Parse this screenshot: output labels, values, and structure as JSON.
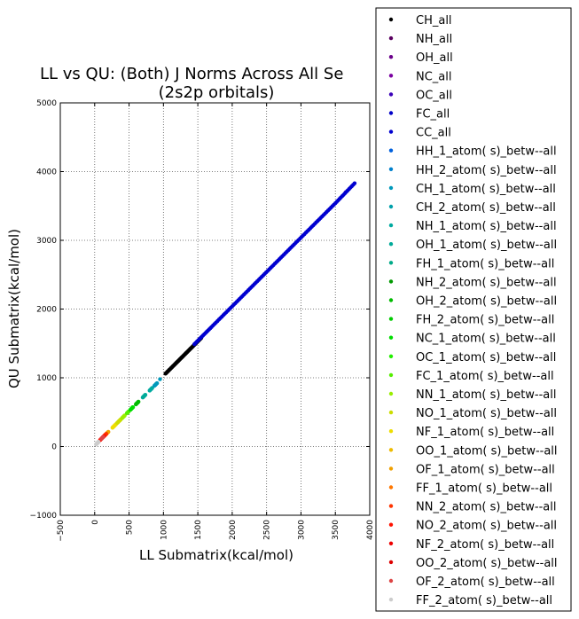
{
  "chart_data": {
    "type": "scatter",
    "title": "LL vs QU: (Both) J Norms Across All Se",
    "subtitle": "(2s2p orbitals)",
    "xlabel": "LL Submatrix(kcal/mol)",
    "ylabel": "QU Submatrix(kcal/mol)",
    "xlim": [
      -500,
      4000
    ],
    "ylim": [
      -1000,
      5000
    ],
    "xticks": [
      -500,
      0,
      500,
      1000,
      1500,
      2000,
      2500,
      3000,
      3500,
      4000
    ],
    "yticks": [
      -1000,
      0,
      1000,
      2000,
      3000,
      4000,
      5000
    ],
    "xtick_labels": [
      "−500",
      "0",
      "500",
      "1000",
      "1500",
      "2000",
      "2500",
      "3000",
      "3500",
      "4000"
    ],
    "ytick_labels": [
      "−1000",
      "0",
      "1000",
      "2000",
      "3000",
      "4000",
      "5000"
    ],
    "grid": true,
    "legend_position": "right, outside plot area",
    "series": [
      {
        "name": "CH_all",
        "color": "#000000",
        "x": [
          1030,
          1150,
          1250,
          1350,
          1450,
          1550
        ],
        "y": [
          1060,
          1180,
          1280,
          1380,
          1480,
          1580
        ]
      },
      {
        "name": "NH_all",
        "color": "#5a0060",
        "x": [],
        "y": []
      },
      {
        "name": "OH_all",
        "color": "#6a008a",
        "x": [],
        "y": []
      },
      {
        "name": "NC_all",
        "color": "#7a00a0",
        "x": [
          3650
        ],
        "y": [
          3700
        ]
      },
      {
        "name": "OC_all",
        "color": "#3a00b8",
        "x": [],
        "y": []
      },
      {
        "name": "FC_all",
        "color": "#0000c8",
        "x": [],
        "y": []
      },
      {
        "name": "CC_all",
        "color": "#0000d0",
        "x": [
          1450,
          1700,
          2000,
          2300,
          2600,
          2900,
          3200,
          3500,
          3780
        ],
        "y": [
          1490,
          1740,
          2040,
          2340,
          2640,
          2940,
          3240,
          3540,
          3830
        ]
      },
      {
        "name": "HH_1_atom( s)_betw--all",
        "color": "#0060dd",
        "x": [],
        "y": []
      },
      {
        "name": "HH_2_atom( s)_betw--all",
        "color": "#0080cc",
        "x": [],
        "y": []
      },
      {
        "name": "CH_1_atom( s)_betw--all",
        "color": "#0099bb",
        "x": [
          950
        ],
        "y": [
          980
        ]
      },
      {
        "name": "CH_2_atom( s)_betw--all",
        "color": "#00a0aa",
        "x": [],
        "y": []
      },
      {
        "name": "NH_1_atom( s)_betw--all",
        "color": "#00aaa0",
        "x": [],
        "y": []
      },
      {
        "name": "OH_1_atom( s)_betw--all",
        "color": "#00aa99",
        "x": [],
        "y": []
      },
      {
        "name": "FH_1_atom( s)_betw--all",
        "color": "#00aa88",
        "x": [],
        "y": []
      },
      {
        "name": "NH_2_atom( s)_betw--all",
        "color": "#009900",
        "x": [],
        "y": []
      },
      {
        "name": "OH_2_atom( s)_betw--all",
        "color": "#00bb00",
        "x": [],
        "y": []
      },
      {
        "name": "FH_2_atom( s)_betw--all",
        "color": "#00cc00",
        "x": [],
        "y": []
      },
      {
        "name": "NC_1_atom( s)_betw--all",
        "color": "#00dd00",
        "x": [],
        "y": []
      },
      {
        "name": "OC_1_atom( s)_betw--all",
        "color": "#22ee00",
        "x": [
          550
        ],
        "y": [
          570
        ]
      },
      {
        "name": "FC_1_atom( s)_betw--all",
        "color": "#55ee00",
        "x": [],
        "y": []
      },
      {
        "name": "NN_1_atom( s)_betw--all",
        "color": "#99ee00",
        "x": [],
        "y": []
      },
      {
        "name": "NO_1_atom( s)_betw--all",
        "color": "#ccdd00",
        "x": [],
        "y": []
      },
      {
        "name": "NF_1_atom( s)_betw--all",
        "color": "#eedd00",
        "x": [],
        "y": []
      },
      {
        "name": "OO_1_atom( s)_betw--all",
        "color": "#eebb00",
        "x": [],
        "y": []
      },
      {
        "name": "OF_1_atom( s)_betw--all",
        "color": "#f0a000",
        "x": [],
        "y": []
      },
      {
        "name": "FF_1_atom( s)_betw--all",
        "color": "#ff7700",
        "x": [],
        "y": []
      },
      {
        "name": "NN_2_atom( s)_betw--all",
        "color": "#ff3300",
        "x": [],
        "y": []
      },
      {
        "name": "NO_2_atom( s)_betw--all",
        "color": "#ff1100",
        "x": [],
        "y": []
      },
      {
        "name": "NF_2_atom( s)_betw--all",
        "color": "#ee0000",
        "x": [],
        "y": []
      },
      {
        "name": "OO_2_atom( s)_betw--all",
        "color": "#dd0000",
        "x": [],
        "y": []
      },
      {
        "name": "OF_2_atom( s)_betw--all",
        "color": "#dd4444",
        "x": [],
        "y": []
      },
      {
        "name": "FF_2_atom( s)_betw--all",
        "color": "#cccccc",
        "x": [
          20,
          60
        ],
        "y": [
          30,
          70
        ]
      }
    ]
  }
}
